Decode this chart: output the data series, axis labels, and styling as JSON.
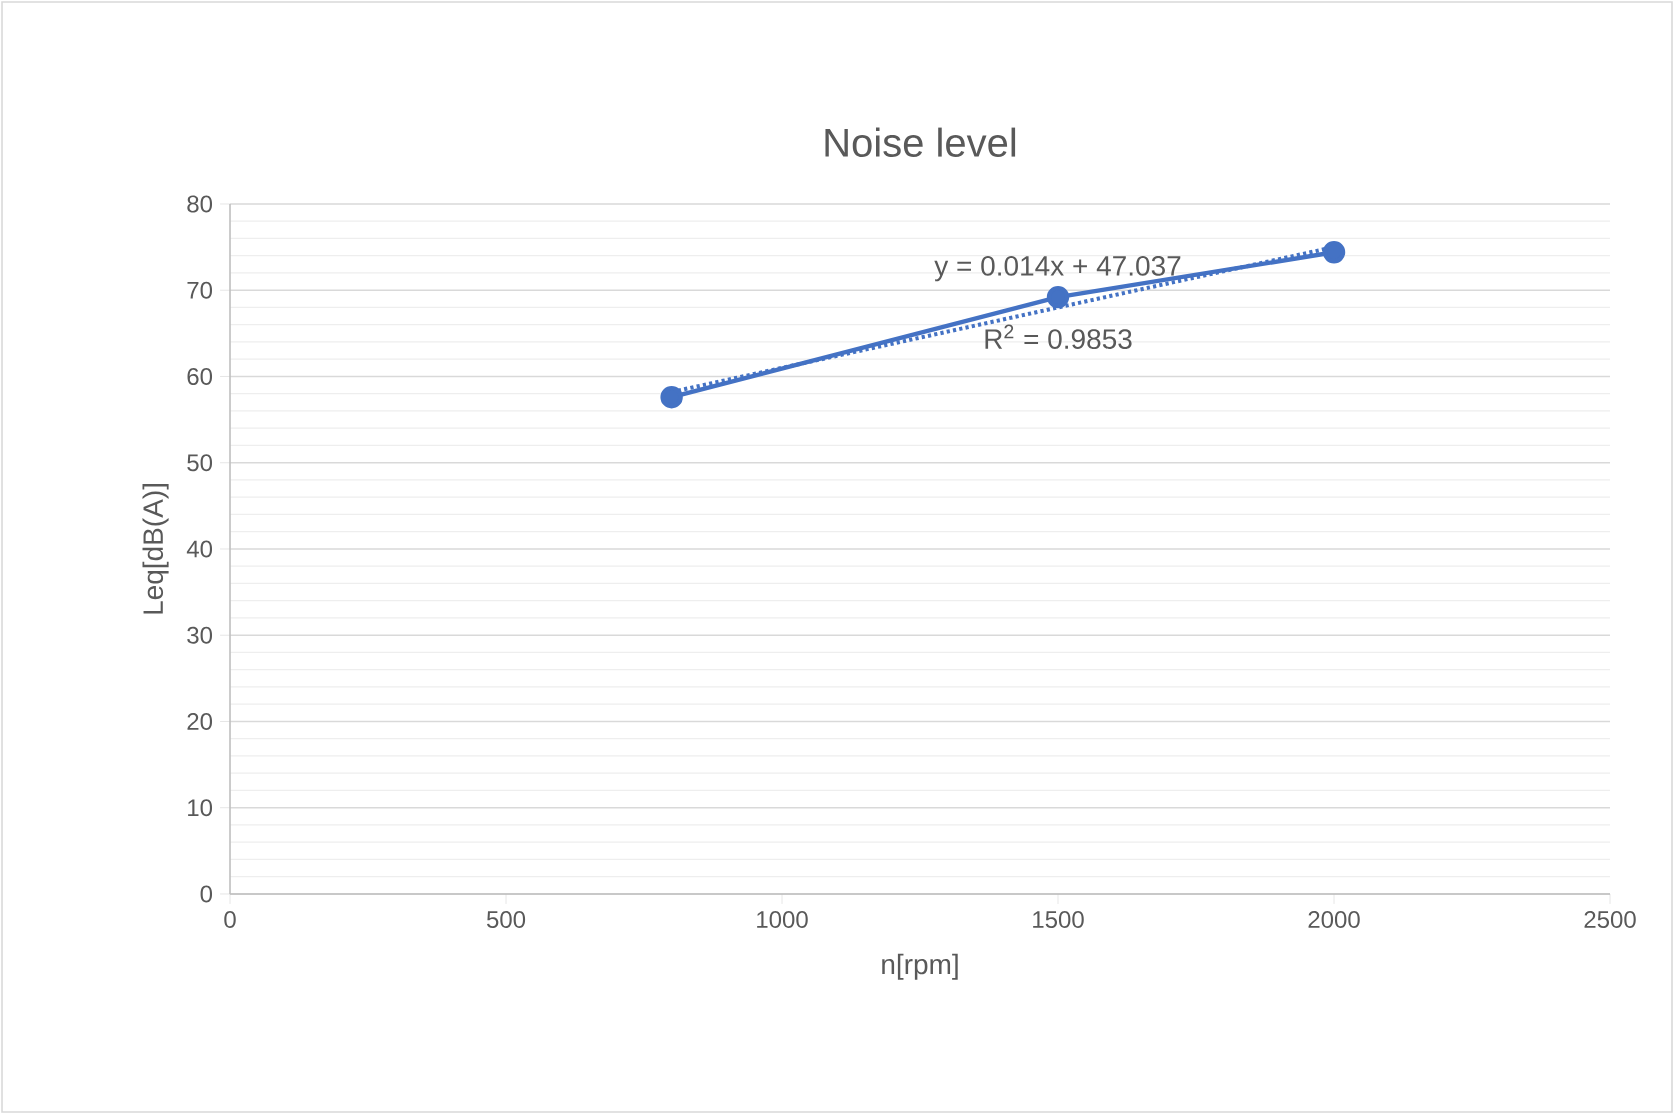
{
  "chart_data": {
    "type": "line",
    "title": "Noise level",
    "xlabel": "n[rpm]",
    "ylabel": "Leq[dB(A)]",
    "annotations": [
      "y = 0.014x + 47.037",
      "R$^{2}$ = 0.9853"
    ],
    "xlim": [
      0,
      2500
    ],
    "xticks": [
      0,
      500,
      1000,
      1500,
      2000,
      2500
    ],
    "ylim": [
      0,
      80
    ],
    "yticks": [
      0,
      10,
      20,
      30,
      40,
      50,
      60,
      70,
      80
    ],
    "grid": "y",
    "legend": false,
    "marker": "circle",
    "series": [
      {
        "color": "#4472c4",
        "x": [
          800,
          1500,
          2000
        ],
        "values": [
          57.6,
          69.2,
          74.4
        ]
      },
      {
        "type": "line",
        "color": "#4472c4",
        "marker": "none",
        "line_style": "dotted",
        "x": [
          800,
          2000
        ],
        "values": [
          58.2,
          75.0
        ]
      }
    ]
  }
}
